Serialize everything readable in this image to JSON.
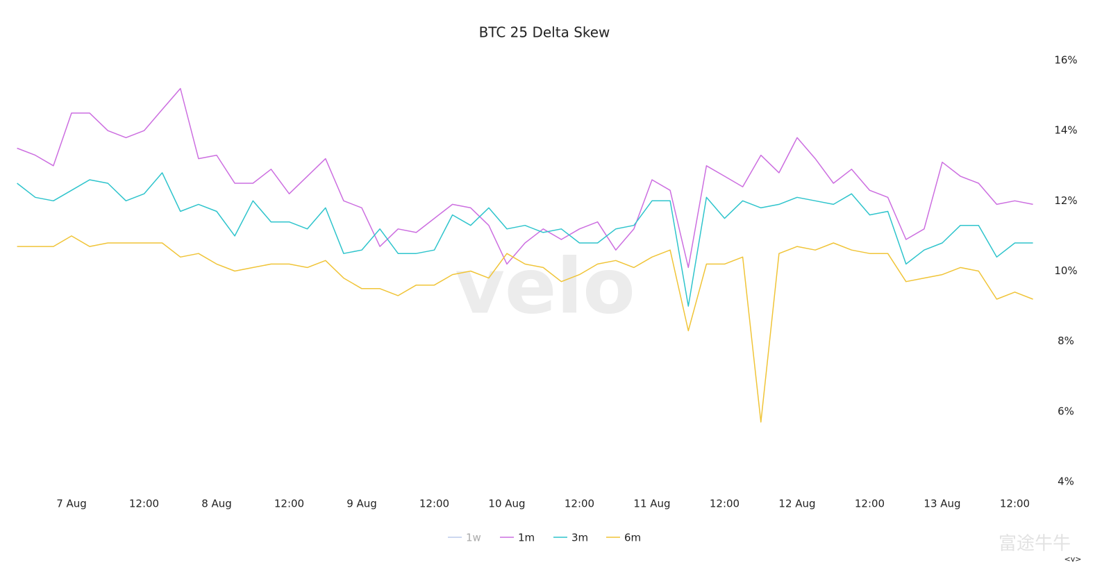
{
  "chart_data": {
    "type": "line",
    "title": "BTC 25 Delta Skew",
    "watermark": "velo",
    "corner_watermark": "富途牛牛",
    "nav": "<v>",
    "x": [
      "6 Aug 15:00",
      "6 Aug 18:00",
      "6 Aug 21:00",
      "7 Aug 00:00",
      "7 Aug 03:00",
      "7 Aug 06:00",
      "7 Aug 09:00",
      "7 Aug 12:00",
      "7 Aug 15:00",
      "7 Aug 18:00",
      "7 Aug 21:00",
      "8 Aug 00:00",
      "8 Aug 03:00",
      "8 Aug 06:00",
      "8 Aug 09:00",
      "8 Aug 12:00",
      "8 Aug 15:00",
      "8 Aug 18:00",
      "8 Aug 21:00",
      "9 Aug 00:00",
      "9 Aug 03:00",
      "9 Aug 06:00",
      "9 Aug 09:00",
      "9 Aug 12:00",
      "9 Aug 15:00",
      "9 Aug 18:00",
      "9 Aug 21:00",
      "10 Aug 00:00",
      "10 Aug 03:00",
      "10 Aug 06:00",
      "10 Aug 09:00",
      "10 Aug 12:00",
      "10 Aug 15:00",
      "10 Aug 18:00",
      "10 Aug 21:00",
      "11 Aug 00:00",
      "11 Aug 03:00",
      "11 Aug 06:00",
      "11 Aug 09:00",
      "11 Aug 12:00",
      "11 Aug 15:00",
      "11 Aug 18:00",
      "11 Aug 21:00",
      "12 Aug 00:00",
      "12 Aug 03:00",
      "12 Aug 06:00",
      "12 Aug 09:00",
      "12 Aug 12:00",
      "12 Aug 15:00",
      "12 Aug 18:00",
      "12 Aug 21:00",
      "13 Aug 00:00",
      "13 Aug 03:00",
      "13 Aug 06:00",
      "13 Aug 09:00",
      "13 Aug 12:00",
      "13 Aug 15:00"
    ],
    "series": [
      {
        "name": "1w",
        "color": "#8fa8e0",
        "hidden": true,
        "values": [
          null,
          null,
          null,
          null,
          null,
          null,
          null,
          null,
          null,
          null,
          null,
          null,
          null,
          null,
          null,
          null,
          null,
          null,
          null,
          null,
          null,
          null,
          null,
          null,
          null,
          null,
          null,
          null,
          null,
          null,
          null,
          null,
          null,
          null,
          null,
          null,
          null,
          null,
          null,
          null,
          null,
          null,
          null,
          null,
          null,
          null,
          null,
          null,
          null,
          null,
          null,
          null,
          null,
          null,
          null,
          null,
          null
        ]
      },
      {
        "name": "1m",
        "color": "#cc6ee0",
        "hidden": false,
        "values": [
          13.5,
          13.3,
          13.0,
          14.5,
          14.5,
          14.0,
          13.8,
          14.0,
          14.6,
          15.2,
          13.2,
          13.3,
          12.5,
          12.5,
          12.9,
          12.2,
          12.7,
          13.2,
          12.0,
          11.8,
          10.7,
          11.2,
          11.1,
          11.5,
          11.9,
          11.8,
          11.3,
          10.2,
          10.8,
          11.2,
          10.9,
          11.2,
          11.4,
          10.6,
          11.2,
          12.6,
          12.3,
          10.1,
          13.0,
          12.7,
          12.4,
          13.3,
          12.8,
          13.8,
          13.2,
          12.5,
          12.9,
          12.3,
          12.1,
          10.9,
          11.2,
          13.1,
          12.7,
          12.5,
          11.9,
          12.0,
          11.9
        ]
      },
      {
        "name": "3m",
        "color": "#2ec4cc",
        "hidden": false,
        "values": [
          12.5,
          12.1,
          12.0,
          12.3,
          12.6,
          12.5,
          12.0,
          12.2,
          12.8,
          11.7,
          11.9,
          11.7,
          11.0,
          12.0,
          11.4,
          11.4,
          11.2,
          11.8,
          10.5,
          10.6,
          11.2,
          10.5,
          10.5,
          10.6,
          11.6,
          11.3,
          11.8,
          11.2,
          11.3,
          11.1,
          11.2,
          10.8,
          10.8,
          11.2,
          11.3,
          12.0,
          12.0,
          9.0,
          12.1,
          11.5,
          12.0,
          11.8,
          11.9,
          12.1,
          12.0,
          11.9,
          12.2,
          11.6,
          11.7,
          10.2,
          10.6,
          10.8,
          11.3,
          11.3,
          10.4,
          10.8,
          10.8
        ]
      },
      {
        "name": "6m",
        "color": "#f0c437",
        "hidden": false,
        "values": [
          10.7,
          10.7,
          10.7,
          11.0,
          10.7,
          10.8,
          10.8,
          10.8,
          10.8,
          10.4,
          10.5,
          10.2,
          10.0,
          10.1,
          10.2,
          10.2,
          10.1,
          10.3,
          9.8,
          9.5,
          9.5,
          9.3,
          9.6,
          9.6,
          9.9,
          10.0,
          9.8,
          10.5,
          10.2,
          10.1,
          9.7,
          9.9,
          10.2,
          10.3,
          10.1,
          10.4,
          10.6,
          8.3,
          10.2,
          10.2,
          10.4,
          5.7,
          10.5,
          10.7,
          10.6,
          10.8,
          10.6,
          10.5,
          10.5,
          9.7,
          9.8,
          9.9,
          10.1,
          10.0,
          9.2,
          9.4,
          9.2
        ]
      }
    ],
    "xticks": [
      {
        "value": "7 Aug 00:00",
        "label": "7 Aug"
      },
      {
        "value": "7 Aug 12:00",
        "label": "12:00"
      },
      {
        "value": "8 Aug 00:00",
        "label": "8 Aug"
      },
      {
        "value": "8 Aug 12:00",
        "label": "12:00"
      },
      {
        "value": "9 Aug 00:00",
        "label": "9 Aug"
      },
      {
        "value": "9 Aug 12:00",
        "label": "12:00"
      },
      {
        "value": "10 Aug 00:00",
        "label": "10 Aug"
      },
      {
        "value": "10 Aug 12:00",
        "label": "12:00"
      },
      {
        "value": "11 Aug 00:00",
        "label": "11 Aug"
      },
      {
        "value": "11 Aug 12:00",
        "label": "12:00"
      },
      {
        "value": "12 Aug 00:00",
        "label": "12 Aug"
      },
      {
        "value": "12 Aug 12:00",
        "label": "12:00"
      },
      {
        "value": "13 Aug 00:00",
        "label": "13 Aug"
      },
      {
        "value": "13 Aug 12:00",
        "label": "12:00"
      }
    ],
    "ylim": [
      4,
      16
    ],
    "yticks": [
      {
        "value": 4,
        "label": "4%"
      },
      {
        "value": 6,
        "label": "6%"
      },
      {
        "value": 8,
        "label": "8%"
      },
      {
        "value": 10,
        "label": "10%"
      },
      {
        "value": 12,
        "label": "12%"
      },
      {
        "value": 14,
        "label": "14%"
      },
      {
        "value": 16,
        "label": "16%"
      }
    ],
    "grid": false
  }
}
